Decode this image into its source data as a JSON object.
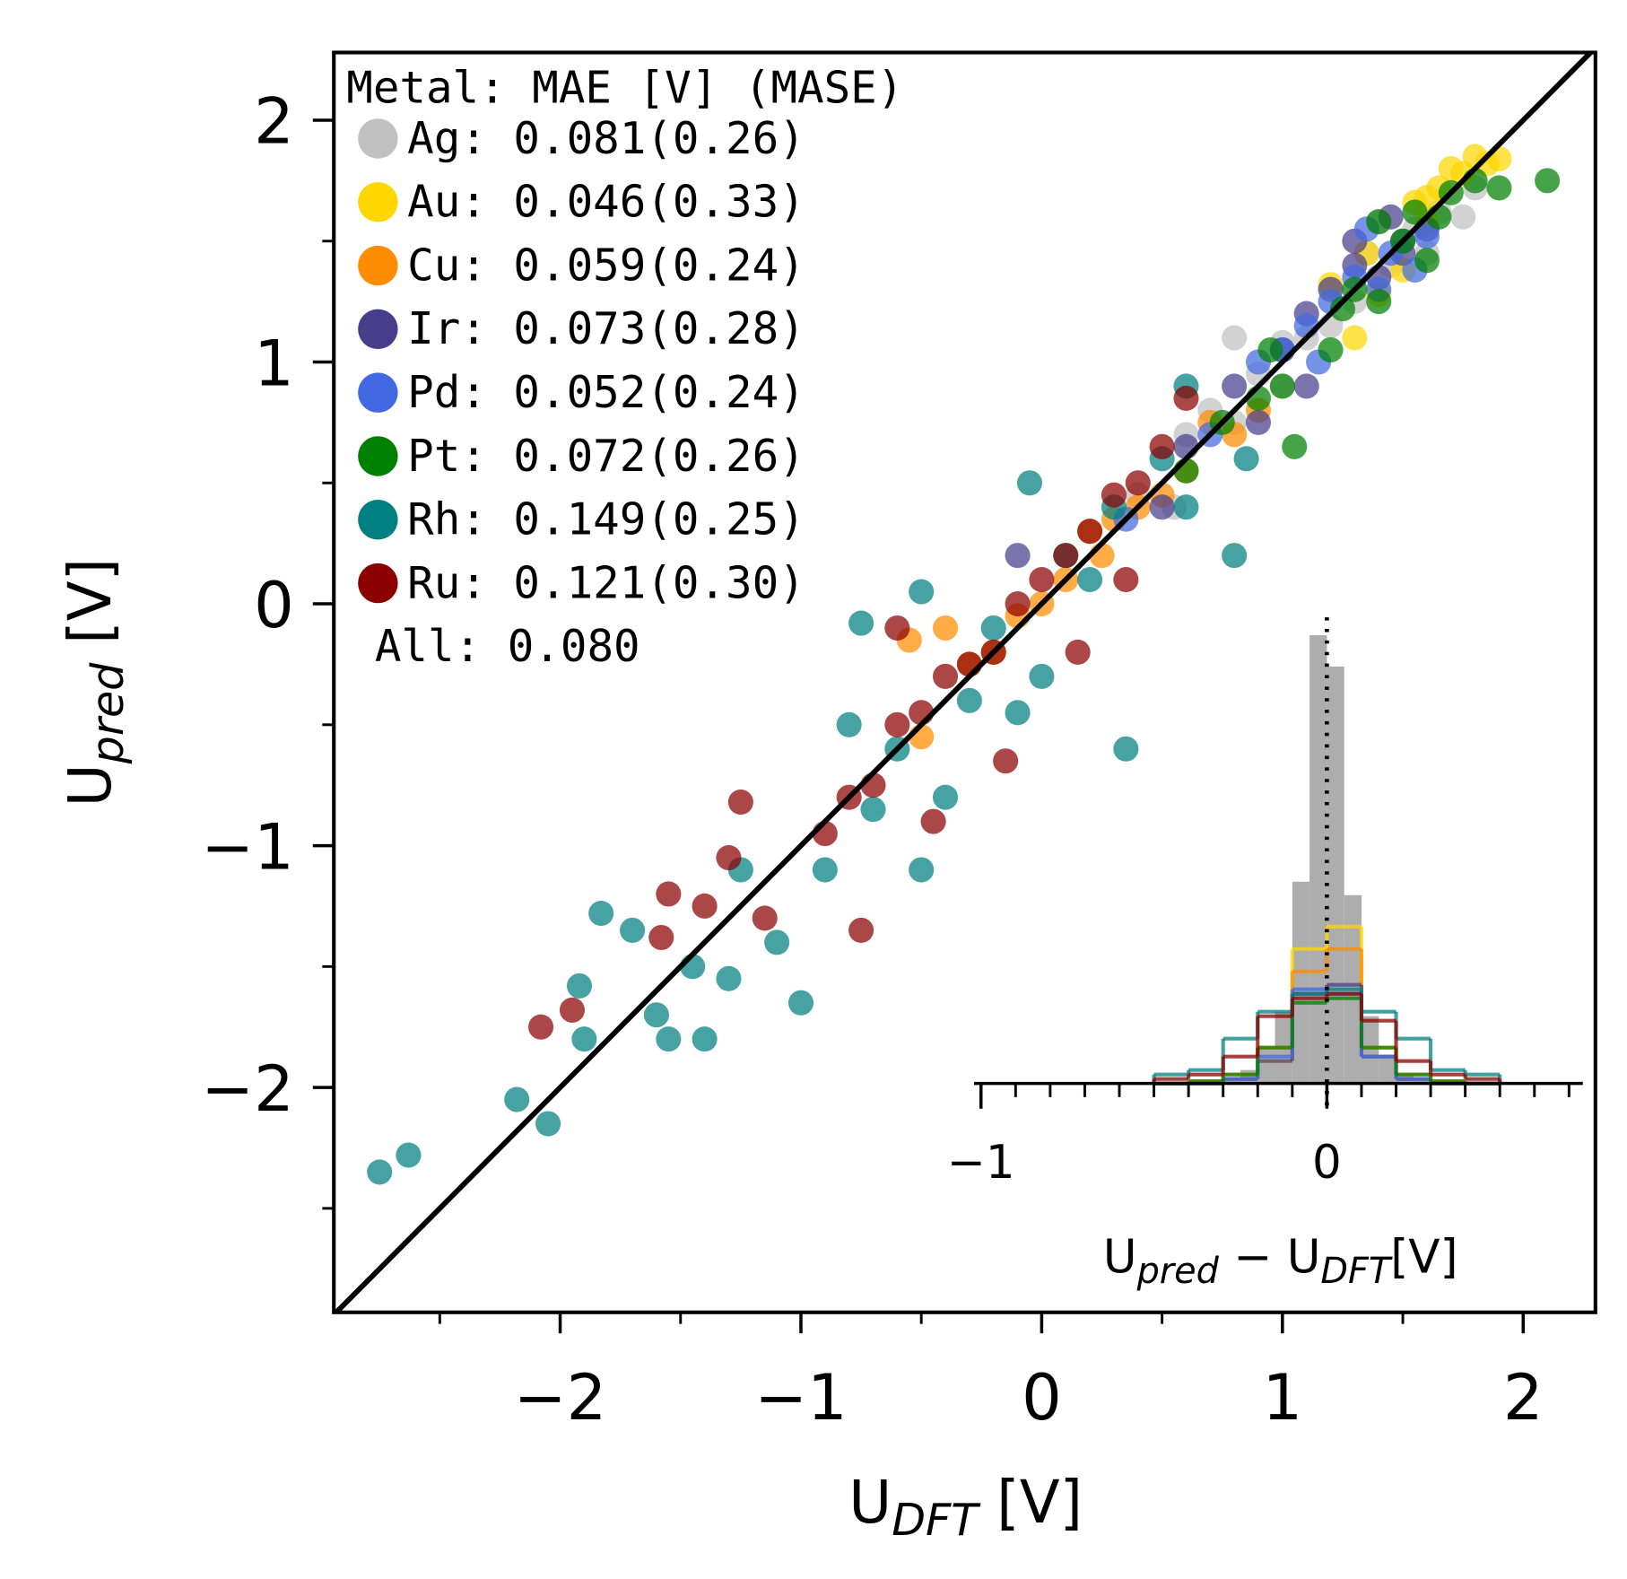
{
  "chart_data": {
    "type": "scatter",
    "xlabel": [
      "U",
      "DFT",
      " [V]"
    ],
    "ylabel": [
      "U",
      "pred",
      " [V]"
    ],
    "xlim": [
      -2.94,
      2.3
    ],
    "ylim": [
      -2.93,
      2.28
    ],
    "xticks": [
      {
        "value": -2,
        "label": "−2"
      },
      {
        "value": -1,
        "label": "−1"
      },
      0,
      1,
      2
    ],
    "yticks": [
      {
        "value": -2,
        "label": "−2"
      },
      {
        "value": -1,
        "label": "−1"
      },
      0,
      1,
      2
    ],
    "minor_xticks": [
      -2.5,
      -1.5,
      -0.5,
      0.5,
      1.5
    ],
    "minor_yticks": [
      -2.5,
      -1.5,
      -0.5,
      0.5,
      1.5
    ],
    "legend": {
      "title": "Metal: MAE [V] (MASE)",
      "position": "upper left",
      "note": "All: 0.080"
    },
    "series": [
      {
        "name": "Ag: 0.081(0.26)",
        "color": "#c0c0c0",
        "x": [
          0.4,
          0.55,
          0.7,
          0.8,
          0.9,
          1.0,
          1.1,
          1.2,
          1.3,
          1.35,
          1.45,
          1.55,
          1.65,
          1.75,
          1.8,
          1.6,
          0.8,
          1.4,
          0.6,
          1.0
        ],
        "values": [
          0.45,
          0.4,
          0.8,
          0.75,
          0.95,
          1.08,
          1.1,
          1.15,
          1.25,
          1.45,
          1.4,
          1.55,
          1.62,
          1.6,
          1.72,
          1.45,
          1.1,
          1.58,
          0.7,
          0.9
        ]
      },
      {
        "name": "Au: 0.046(0.33)",
        "color": "#ffd700",
        "x": [
          1.2,
          1.35,
          1.5,
          1.6,
          1.7,
          1.75,
          1.8,
          1.85,
          1.6,
          1.4,
          1.5,
          1.9,
          1.3,
          1.55,
          1.65
        ],
        "values": [
          1.32,
          1.45,
          1.5,
          1.68,
          1.8,
          1.78,
          1.85,
          1.82,
          1.58,
          1.28,
          1.38,
          1.84,
          1.1,
          1.66,
          1.72
        ]
      },
      {
        "name": "Cu: 0.059(0.24)",
        "color": "#ff8c00",
        "x": [
          -0.4,
          -0.5,
          -0.3,
          -0.2,
          -0.1,
          0,
          0.1,
          0.2,
          0.3,
          0.4,
          0.5,
          0.6,
          0.7,
          0.8,
          0.9,
          0.25,
          -0.55
        ],
        "values": [
          -0.1,
          -0.55,
          -0.25,
          -0.2,
          -0.05,
          0,
          0.1,
          0.3,
          0.35,
          0.4,
          0.45,
          0.55,
          0.75,
          0.7,
          0.8,
          0.2,
          -0.15
        ]
      },
      {
        "name": "Ir: 0.073(0.28)",
        "color": "#483d8b",
        "x": [
          0.6,
          0.8,
          1.0,
          1.1,
          1.2,
          1.3,
          1.4,
          1.5,
          1.6,
          1.1,
          0.9,
          -0.1,
          1.3,
          1.45,
          0.5
        ],
        "values": [
          0.65,
          0.9,
          1.05,
          1.2,
          1.3,
          1.4,
          1.35,
          1.45,
          1.55,
          0.9,
          0.75,
          0.2,
          1.5,
          1.6,
          0.4
        ]
      },
      {
        "name": "Pd: 0.052(0.24)",
        "color": "#4169e1",
        "x": [
          0.7,
          0.9,
          1.0,
          1.1,
          1.2,
          1.3,
          1.45,
          1.5,
          1.55,
          1.35,
          1.15,
          0.35,
          1.6,
          1.4
        ],
        "values": [
          0.7,
          1.0,
          1.05,
          1.15,
          1.25,
          1.35,
          1.45,
          1.5,
          1.38,
          1.55,
          1.0,
          0.35,
          1.52,
          1.3
        ]
      },
      {
        "name": "Pt: 0.072(0.26)",
        "color": "#008000",
        "x": [
          0.6,
          0.75,
          0.9,
          1.0,
          1.05,
          1.2,
          1.3,
          1.4,
          1.5,
          1.55,
          1.6,
          1.7,
          1.8,
          1.9,
          2.1,
          1.4,
          1.25,
          1.65,
          0.95
        ],
        "values": [
          0.55,
          0.75,
          0.85,
          0.9,
          0.65,
          1.05,
          1.3,
          1.25,
          1.5,
          1.62,
          1.42,
          1.7,
          1.75,
          1.72,
          1.75,
          1.58,
          1.22,
          1.6,
          1.05
        ]
      },
      {
        "name": "Rh: 0.149(0.25)",
        "color": "#008080",
        "x": [
          -2.75,
          -2.63,
          -2.18,
          -2.05,
          -1.9,
          -1.92,
          -1.83,
          -1.7,
          -1.6,
          -1.55,
          -1.4,
          -1.45,
          -1.3,
          -1.1,
          -1.0,
          -0.9,
          -0.7,
          -0.5,
          -0.4,
          -0.3,
          -0.2,
          -0.1,
          0,
          0.1,
          0.2,
          0.3,
          0.35,
          0.5,
          0.6,
          0.8,
          0.85,
          -0.75,
          -0.5,
          -0.05,
          0.6,
          -1.25,
          -0.8,
          -0.6
        ],
        "values": [
          -2.35,
          -2.28,
          -2.05,
          -2.15,
          -1.8,
          -1.58,
          -1.28,
          -1.35,
          -1.7,
          -1.8,
          -1.8,
          -1.5,
          -1.55,
          -1.4,
          -1.65,
          -1.1,
          -0.85,
          -1.1,
          -0.8,
          -0.4,
          -0.1,
          -0.45,
          -0.3,
          0.2,
          0.1,
          0.4,
          -0.6,
          0.6,
          0.9,
          0.2,
          0.6,
          -0.08,
          0.05,
          0.5,
          0.4,
          -1.1,
          -0.5,
          -0.6
        ]
      },
      {
        "name": "Ru: 0.121(0.30)",
        "color": "#8b0000",
        "x": [
          -2.08,
          -1.95,
          -1.58,
          -1.55,
          -1.4,
          -1.3,
          -1.25,
          -1.15,
          -0.9,
          -0.8,
          -0.7,
          -0.6,
          -0.5,
          -0.4,
          -0.3,
          -0.2,
          -0.1,
          0,
          0.1,
          0.2,
          0.3,
          0.4,
          0.5,
          0.6,
          -0.75,
          -0.45,
          -0.15,
          0.15,
          -0.6,
          0.35
        ],
        "values": [
          -1.75,
          -1.68,
          -1.38,
          -1.2,
          -1.25,
          -1.05,
          -0.82,
          -1.3,
          -0.95,
          -0.8,
          -0.75,
          -0.5,
          -0.45,
          -0.3,
          -0.25,
          -0.2,
          0,
          0.1,
          0.2,
          0.3,
          0.45,
          0.5,
          0.65,
          0.85,
          -1.35,
          -0.9,
          -0.65,
          -0.2,
          -0.1,
          0.1
        ]
      }
    ],
    "inset": {
      "type": "histogram",
      "xlabel": [
        "U",
        "pred",
        " − U",
        "DFT",
        "[V]"
      ],
      "xlim": [
        -1.02,
        0.74
      ],
      "ylim": [
        0,
        1
      ],
      "xticks": [
        {
          "value": -1,
          "label": "−1"
        },
        0
      ],
      "minor_xticks": [
        -0.9,
        -0.8,
        -0.7,
        -0.6,
        -0.5,
        -0.4,
        -0.3,
        -0.2,
        -0.1,
        0.1,
        0.2,
        0.3,
        0.4,
        0.5,
        0.6,
        0.7
      ],
      "vline": 0,
      "histograms": [
        {
          "color": "#a9a9a9",
          "filled": true,
          "bins": [
            -0.3,
            -0.25,
            -0.2,
            -0.15,
            -0.1,
            -0.05,
            0,
            0.05,
            0.1,
            0.15,
            0.2,
            0.25,
            0.3
          ],
          "counts": [
            0.01,
            0.03,
            0.08,
            0.16,
            0.45,
            1.0,
            0.93,
            0.42,
            0.15,
            0.06,
            0.02,
            0.01
          ]
        },
        {
          "color": "#ffd700",
          "filled": false,
          "bins": [
            -0.5,
            -0.4,
            -0.3,
            -0.2,
            -0.1,
            0,
            0.1,
            0.2,
            0.3,
            0.4,
            0.5
          ],
          "counts": [
            0,
            0,
            0.01,
            0.05,
            0.3,
            0.35,
            0.06,
            0.01,
            0,
            0
          ]
        },
        {
          "color": "#ff8c00",
          "filled": false,
          "bins": [
            -0.5,
            -0.4,
            -0.3,
            -0.2,
            -0.1,
            0,
            0.1,
            0.2,
            0.3,
            0.4,
            0.5
          ],
          "counts": [
            0,
            0.005,
            0.02,
            0.08,
            0.25,
            0.3,
            0.08,
            0.02,
            0.005,
            0
          ]
        },
        {
          "color": "#483d8b",
          "filled": false,
          "bins": [
            -0.5,
            -0.4,
            -0.3,
            -0.2,
            -0.1,
            0,
            0.1,
            0.2,
            0.3,
            0.4,
            0.5
          ],
          "counts": [
            0,
            0,
            0.01,
            0.05,
            0.2,
            0.22,
            0.06,
            0.01,
            0,
            0
          ]
        },
        {
          "color": "#4169e1",
          "filled": false,
          "bins": [
            -0.5,
            -0.4,
            -0.3,
            -0.2,
            -0.1,
            0,
            0.1,
            0.2,
            0.3,
            0.4,
            0.5
          ],
          "counts": [
            0,
            0,
            0.01,
            0.06,
            0.21,
            0.2,
            0.06,
            0.01,
            0,
            0
          ]
        },
        {
          "color": "#008000",
          "filled": false,
          "bins": [
            -0.5,
            -0.4,
            -0.3,
            -0.2,
            -0.1,
            0,
            0.1,
            0.2,
            0.3,
            0.4,
            0.5
          ],
          "counts": [
            0,
            0.005,
            0.02,
            0.08,
            0.18,
            0.19,
            0.08,
            0.02,
            0.005,
            0
          ]
        },
        {
          "color": "#008080",
          "filled": false,
          "bins": [
            -0.5,
            -0.4,
            -0.3,
            -0.2,
            -0.1,
            0,
            0.1,
            0.2,
            0.3,
            0.4,
            0.5
          ],
          "counts": [
            0.02,
            0.03,
            0.1,
            0.16,
            0.2,
            0.21,
            0.16,
            0.1,
            0.03,
            0.02
          ]
        },
        {
          "color": "#8b0000",
          "filled": false,
          "bins": [
            -0.5,
            -0.4,
            -0.3,
            -0.2,
            -0.1,
            0,
            0.1,
            0.2,
            0.3,
            0.4,
            0.5
          ],
          "counts": [
            0.01,
            0.02,
            0.06,
            0.15,
            0.19,
            0.2,
            0.14,
            0.05,
            0.02,
            0.01
          ]
        }
      ]
    }
  }
}
